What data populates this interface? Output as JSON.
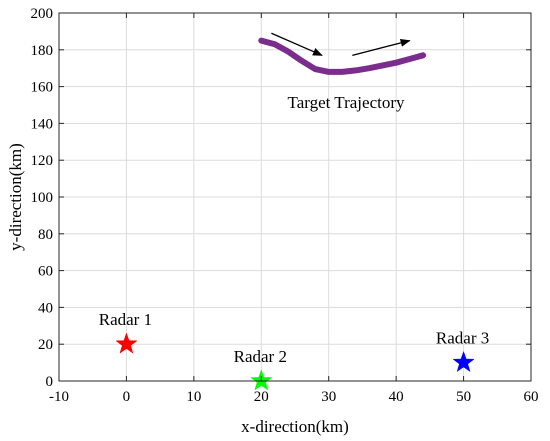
{
  "chart_data": {
    "type": "scatter",
    "title": "",
    "xlabel": "x-direction(km)",
    "ylabel": "y-direction(km)",
    "xlim": [
      -10,
      60
    ],
    "ylim": [
      0,
      200
    ],
    "xticks": [
      -10,
      0,
      10,
      20,
      30,
      40,
      50,
      60
    ],
    "yticks": [
      0,
      20,
      40,
      60,
      80,
      100,
      120,
      140,
      160,
      180,
      200
    ],
    "grid": true,
    "series": [
      {
        "marker": "star",
        "color": "#ff0000",
        "points": [
          {
            "x": 0,
            "y": 20,
            "label": "Radar 1"
          }
        ]
      },
      {
        "marker": "star",
        "color": "#00ff00",
        "points": [
          {
            "x": 20,
            "y": 0,
            "label": "Radar 2"
          }
        ]
      },
      {
        "marker": "star",
        "color": "#0000ff",
        "points": [
          {
            "x": 50,
            "y": 10,
            "label": "Radar 3"
          }
        ]
      },
      {
        "marker": "line",
        "color": "#7b2d8e",
        "label": "Target Trajectory",
        "x": [
          20,
          22,
          24,
          26,
          28,
          30,
          32,
          34,
          36,
          38,
          40,
          42,
          44
        ],
        "y": [
          185,
          183,
          179,
          174,
          169.5,
          168,
          168,
          168.8,
          170,
          171.5,
          173,
          175,
          177
        ]
      }
    ],
    "arrows": [
      {
        "from": [
          21.5,
          189
        ],
        "to": [
          29,
          177
        ]
      },
      {
        "from": [
          33.5,
          177
        ],
        "to": [
          42,
          185
        ]
      }
    ]
  }
}
